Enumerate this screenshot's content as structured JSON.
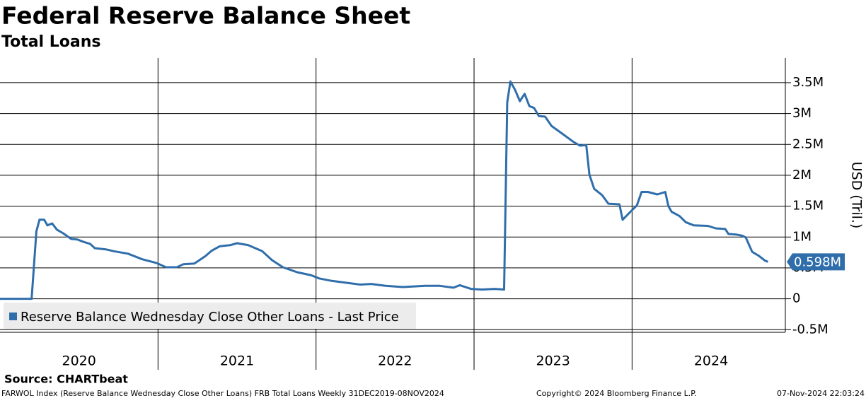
{
  "chart_data": {
    "type": "line",
    "title": "Federal Reserve Balance Sheet",
    "subtitle": "Total Loans",
    "y_axis_label": "USD (Tril.)",
    "source": "Source: CHARTbeat",
    "footer_left": "FARWOL Index (Reserve Balance Wednesday Close Other Loans) FRB Total Loans  Weekly 31DEC2019-08NOV2024",
    "footer_center": "Copyright© 2024 Bloomberg Finance L.P.",
    "footer_right": "07-Nov-2024 22:03:24",
    "last_price": {
      "value": 0.598,
      "label": "0.598M"
    },
    "legend": "lower left",
    "grid": true,
    "xlim": [
      2020,
      2024.97
    ],
    "xticks": [
      {
        "value": 2020.5,
        "label": "2020"
      },
      {
        "value": 2021.5,
        "label": "2021"
      },
      {
        "value": 2022.5,
        "label": "2022"
      },
      {
        "value": 2023.5,
        "label": "2023"
      },
      {
        "value": 2024.5,
        "label": "2024"
      }
    ],
    "xgrid": [
      2021,
      2022,
      2023,
      2024
    ],
    "ylim": [
      -0.52,
      3.9
    ],
    "yticks": [
      {
        "value": -0.5,
        "label": "-0.5M"
      },
      0,
      {
        "value": 0.5,
        "label": "0.5M"
      },
      {
        "value": 1,
        "label": "1M"
      },
      {
        "value": 1.5,
        "label": "1.5M"
      },
      {
        "value": 2,
        "label": "2M"
      },
      {
        "value": 2.5,
        "label": "2.5M"
      },
      {
        "value": 3,
        "label": "3M"
      },
      {
        "value": 3.5,
        "label": "3.5M"
      }
    ],
    "x": [
      2020.0,
      2020.2,
      2020.23,
      2020.25,
      2020.28,
      2020.3,
      2020.33,
      2020.36,
      2020.4,
      2020.45,
      2020.49,
      2020.53,
      2020.57,
      2020.6,
      2020.67,
      2020.72,
      2020.81,
      2020.9,
      2020.99,
      2021.05,
      2021.12,
      2021.16,
      2021.23,
      2021.3,
      2021.34,
      2021.39,
      2021.46,
      2021.5,
      2021.57,
      2021.66,
      2021.72,
      2021.79,
      2021.88,
      2021.97,
      2022.02,
      2022.1,
      2022.19,
      2022.28,
      2022.35,
      2022.44,
      2022.55,
      2022.69,
      2022.78,
      2022.87,
      2022.91,
      2022.98,
      2023.05,
      2023.13,
      2023.19,
      2023.21,
      2023.23,
      2023.26,
      2023.29,
      2023.32,
      2023.35,
      2023.38,
      2023.41,
      2023.45,
      2023.49,
      2023.56,
      2023.63,
      2023.67,
      2023.71,
      2023.73,
      2023.76,
      2023.81,
      2023.85,
      2023.92,
      2023.94,
      2023.99,
      2024.03,
      2024.06,
      2024.1,
      2024.16,
      2024.21,
      2024.23,
      2024.25,
      2024.3,
      2024.34,
      2024.39,
      2024.48,
      2024.53,
      2024.59,
      2024.61,
      2024.66,
      2024.7,
      2024.72,
      2024.76,
      2024.8,
      2024.84,
      2024.86
    ],
    "series": [
      {
        "name": "Reserve Balance Wednesday Close Other Loans - Last Price",
        "color": "#2f6eab",
        "values": [
          0,
          0,
          1.09,
          1.28,
          1.28,
          1.19,
          1.22,
          1.12,
          1.06,
          0.97,
          0.96,
          0.92,
          0.89,
          0.82,
          0.8,
          0.77,
          0.73,
          0.64,
          0.58,
          0.51,
          0.51,
          0.56,
          0.57,
          0.69,
          0.78,
          0.85,
          0.87,
          0.9,
          0.87,
          0.77,
          0.63,
          0.51,
          0.43,
          0.38,
          0.33,
          0.29,
          0.26,
          0.23,
          0.24,
          0.21,
          0.19,
          0.21,
          0.21,
          0.18,
          0.22,
          0.16,
          0.15,
          0.16,
          0.15,
          3.18,
          3.52,
          3.38,
          3.2,
          3.32,
          3.12,
          3.09,
          2.96,
          2.95,
          2.8,
          2.67,
          2.54,
          2.48,
          2.49,
          2.01,
          1.78,
          1.68,
          1.54,
          1.53,
          1.28,
          1.41,
          1.51,
          1.73,
          1.73,
          1.69,
          1.73,
          1.5,
          1.41,
          1.34,
          1.24,
          1.19,
          1.18,
          1.14,
          1.13,
          1.05,
          1.04,
          1.02,
          0.99,
          0.76,
          0.7,
          0.62,
          0.598
        ]
      }
    ]
  }
}
